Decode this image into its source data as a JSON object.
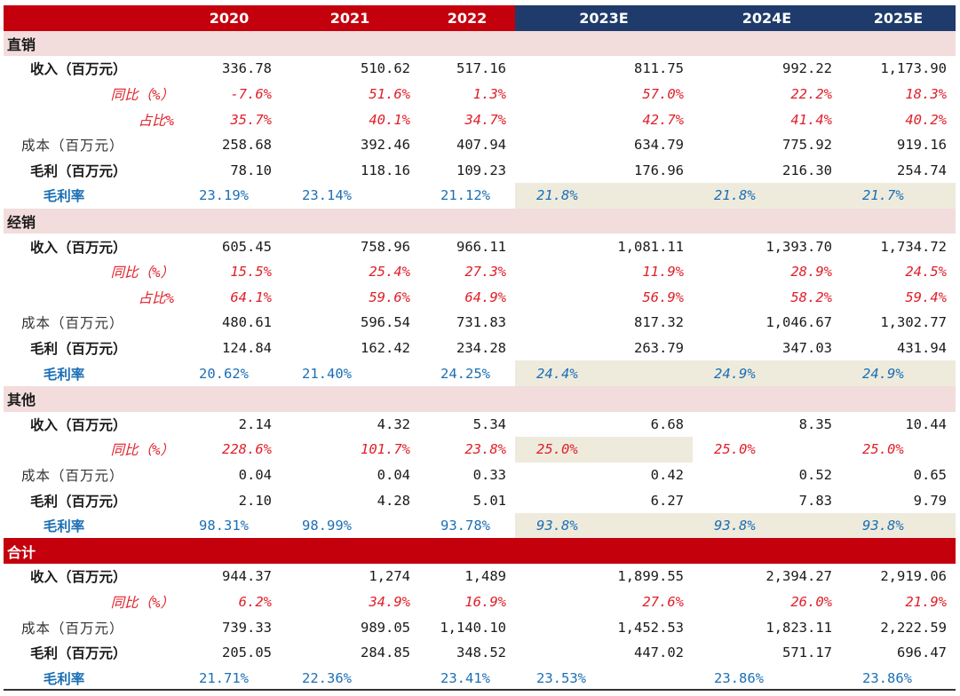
{
  "header": {
    "blank": "",
    "years": [
      "2020",
      "2021",
      "2022",
      "2023E",
      "2024E",
      "2025E"
    ]
  },
  "sections": [
    {
      "name": "直销",
      "rows": [
        {
          "label": "收入（百万元）",
          "style": "bold",
          "values": [
            "336.78",
            "510.62",
            "517.16",
            "811.75",
            "992.22",
            "1,173.90"
          ]
        },
        {
          "label": "同比（%）",
          "style": "italic",
          "values": [
            "-7.6%",
            "51.6%",
            "1.3%",
            "57.0%",
            "22.2%",
            "18.3%"
          ]
        },
        {
          "label": "占比%",
          "style": "italic",
          "values": [
            "35.7%",
            "40.1%",
            "34.7%",
            "42.7%",
            "41.4%",
            "40.2%"
          ]
        },
        {
          "label": "成本（百万元）",
          "style": "plain",
          "values": [
            "258.68",
            "392.46",
            "407.94",
            "634.79",
            "775.92",
            "919.16"
          ]
        },
        {
          "label": "毛利（百万元）",
          "style": "bold",
          "values": [
            "78.10",
            "118.16",
            "109.23",
            "176.96",
            "216.30",
            "254.74"
          ]
        },
        {
          "label": "毛利率",
          "style": "blue",
          "values": [
            "23.19%",
            "23.14%",
            "21.12%",
            "21.8%",
            "21.8%",
            "21.7%"
          ]
        }
      ]
    },
    {
      "name": "经销",
      "rows": [
        {
          "label": "收入（百万元）",
          "style": "bold",
          "values": [
            "605.45",
            "758.96",
            "966.11",
            "1,081.11",
            "1,393.70",
            "1,734.72"
          ]
        },
        {
          "label": "同比（%）",
          "style": "italic",
          "values": [
            "15.5%",
            "25.4%",
            "27.3%",
            "11.9%",
            "28.9%",
            "24.5%"
          ]
        },
        {
          "label": "占比%",
          "style": "italic",
          "values": [
            "64.1%",
            "59.6%",
            "64.9%",
            "56.9%",
            "58.2%",
            "59.4%"
          ]
        },
        {
          "label": "成本（百万元）",
          "style": "plain",
          "values": [
            "480.61",
            "596.54",
            "731.83",
            "817.32",
            "1,046.67",
            "1,302.77"
          ]
        },
        {
          "label": "毛利（百万元）",
          "style": "bold",
          "values": [
            "124.84",
            "162.42",
            "234.28",
            "263.79",
            "347.03",
            "431.94"
          ]
        },
        {
          "label": "毛利率",
          "style": "blue",
          "values": [
            "20.62%",
            "21.40%",
            "24.25%",
            "24.4%",
            "24.9%",
            "24.9%"
          ]
        }
      ]
    },
    {
      "name": "其他",
      "rows": [
        {
          "label": "收入（百万元）",
          "style": "bold",
          "values": [
            "2.14",
            "4.32",
            "5.34",
            "6.68",
            "8.35",
            "10.44"
          ]
        },
        {
          "label": "同比（%）",
          "style": "italic2",
          "values": [
            "228.6%",
            "101.7%",
            "23.8%",
            "25.0%",
            "25.0%",
            "25.0%"
          ]
        },
        {
          "label": "成本（百万元）",
          "style": "plain",
          "values": [
            "0.04",
            "0.04",
            "0.33",
            "0.42",
            "0.52",
            "0.65"
          ]
        },
        {
          "label": "毛利（百万元）",
          "style": "bold",
          "values": [
            "2.10",
            "4.28",
            "5.01",
            "6.27",
            "7.83",
            "9.79"
          ]
        },
        {
          "label": "毛利率",
          "style": "blue",
          "values": [
            "98.31%",
            "98.99%",
            "93.78%",
            "93.8%",
            "93.8%",
            "93.8%"
          ]
        }
      ]
    },
    {
      "name": "合计",
      "total": true,
      "rows": [
        {
          "label": "收入（百万元）",
          "style": "bold",
          "values": [
            "944.37",
            "1,274",
            "1,489",
            "1,899.55",
            "2,394.27",
            "2,919.06"
          ]
        },
        {
          "label": "同比（%）",
          "style": "italic",
          "values": [
            "6.2%",
            "34.9%",
            "16.9%",
            "27.6%",
            "26.0%",
            "21.9%"
          ]
        },
        {
          "label": "成本（百万元）",
          "style": "plain",
          "values": [
            "739.33",
            "989.05",
            "1,140.10",
            "1,452.53",
            "1,823.11",
            "2,222.59"
          ]
        },
        {
          "label": "毛利（百万元）",
          "style": "bold",
          "values": [
            "205.05",
            "284.85",
            "348.52",
            "447.02",
            "571.17",
            "696.47"
          ]
        },
        {
          "label": "毛利率",
          "style": "blue-total",
          "values": [
            "21.71%",
            "22.36%",
            "23.41%",
            "23.53%",
            "23.86%",
            "23.86%"
          ]
        }
      ]
    }
  ],
  "colors": {
    "header_red": "#c4000d",
    "header_blue": "#1f3b6b",
    "section_pink": "#f2dcdc",
    "accent_red": "#e0202a",
    "accent_blue": "#1b6fb5",
    "forecast_shade": "#eeebdd"
  }
}
